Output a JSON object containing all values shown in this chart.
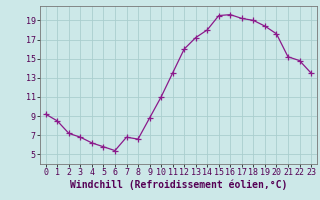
{
  "hours": [
    0,
    1,
    2,
    3,
    4,
    5,
    6,
    7,
    8,
    9,
    10,
    11,
    12,
    13,
    14,
    15,
    16,
    17,
    18,
    19,
    20,
    21,
    22,
    23
  ],
  "values": [
    9.2,
    8.5,
    7.2,
    6.8,
    6.2,
    5.8,
    5.4,
    6.8,
    6.6,
    8.8,
    11.0,
    13.5,
    16.0,
    17.2,
    18.0,
    19.5,
    19.6,
    19.2,
    19.0,
    18.4,
    17.6,
    15.2,
    14.8,
    13.5
  ],
  "line_color": "#8b1a8b",
  "marker": "+",
  "marker_size": 4,
  "bg_color": "#cce8e8",
  "grid_color": "#aacece",
  "xlabel": "Windchill (Refroidissement éolien,°C)",
  "ylim": [
    4,
    20.5
  ],
  "xlim": [
    -0.5,
    23.5
  ],
  "yticks": [
    5,
    7,
    9,
    11,
    13,
    15,
    17,
    19
  ],
  "xticks": [
    0,
    1,
    2,
    3,
    4,
    5,
    6,
    7,
    8,
    9,
    10,
    11,
    12,
    13,
    14,
    15,
    16,
    17,
    18,
    19,
    20,
    21,
    22,
    23
  ],
  "xlabel_fontsize": 7,
  "tick_fontsize": 6,
  "line_width": 0.9,
  "marker_edge_width": 0.9
}
